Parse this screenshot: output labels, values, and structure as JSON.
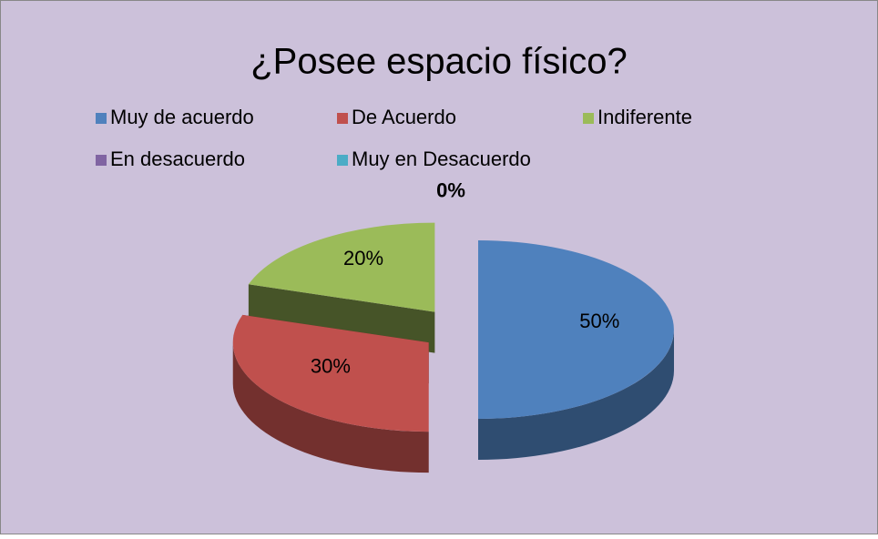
{
  "chart_data": {
    "type": "pie",
    "title": "¿Posee espacio físico?",
    "categories": [
      "Muy de acuerdo",
      "De Acuerdo",
      "Indiferente",
      "En desacuerdo",
      "Muy en Desacuerdo"
    ],
    "values": [
      50,
      30,
      20,
      0,
      0
    ],
    "value_labels": [
      "50%",
      "30%",
      "20%",
      "0%",
      null
    ],
    "colors": [
      "#4f81bd",
      "#c0504d",
      "#9bbb59",
      "#8064a2",
      "#4bacc6"
    ],
    "legend": "top"
  }
}
